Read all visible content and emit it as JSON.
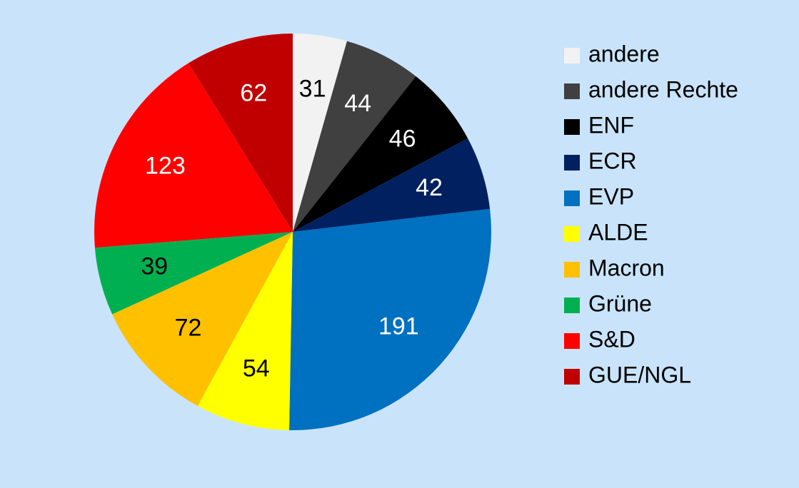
{
  "chart_data": {
    "type": "pie",
    "categories": [
      "andere",
      "andere Rechte",
      "ENF",
      "ECR",
      "EVP",
      "ALDE",
      "Macron",
      "Grüne",
      "S&D",
      "GUE/NGL"
    ],
    "values": [
      31,
      44,
      46,
      42,
      191,
      54,
      72,
      39,
      123,
      62
    ],
    "colors": [
      "#f2f2f2",
      "#404040",
      "#000000",
      "#002060",
      "#0070c0",
      "#ffff00",
      "#ffc000",
      "#00b050",
      "#ff0000",
      "#c00000"
    ],
    "legend": "right"
  }
}
